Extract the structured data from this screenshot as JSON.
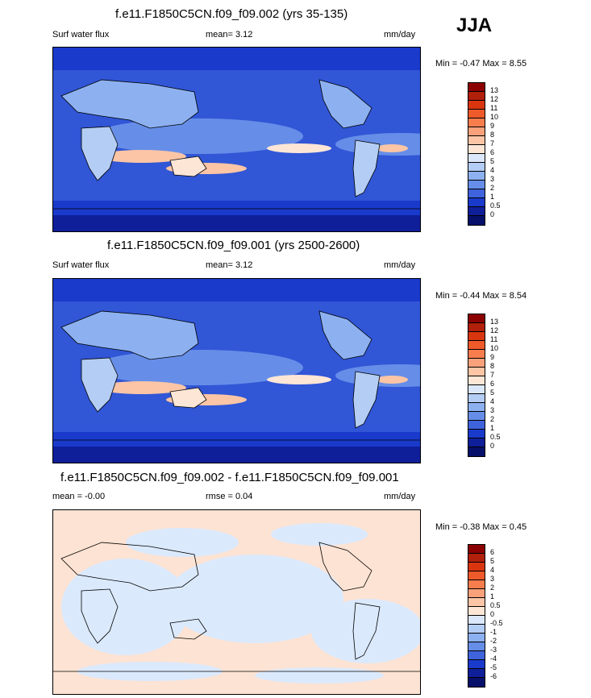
{
  "season": "JJA",
  "colors": {
    "land_outline": "#000000",
    "diff_background": "#fde3d3",
    "diff_negative": "#dbe9fc"
  },
  "panels": [
    {
      "title": "f.e11.F1850C5CN.f09_f09.002 (yrs 35-135)",
      "left_label": "Surf water flux",
      "center_label": "mean=   3.12",
      "units": "mm/day",
      "minmax": "Min = -0.47 Max =   8.55",
      "colorbar": {
        "labels": [
          "13",
          "12",
          "11",
          "10",
          "9",
          "8",
          "7",
          "6",
          "5",
          "4",
          "3",
          "2",
          "1",
          "0.5",
          "0"
        ],
        "colors": [
          "#8b0000",
          "#b0200a",
          "#d9360f",
          "#ee5a2a",
          "#f77d4d",
          "#f9a17b",
          "#fbc5a6",
          "#fde6d6",
          "#dbe8fb",
          "#b4cdf5",
          "#8db1f0",
          "#668ee8",
          "#3f63dc",
          "#1a3acb",
          "#0f1f9a",
          "#06106a"
        ]
      }
    },
    {
      "title": "f.e11.F1850C5CN.f09_f09.001 (yrs 2500-2600)",
      "left_label": "Surf water flux",
      "center_label": "mean=   3.12",
      "units": "mm/day",
      "minmax": "Min = -0.44 Max =   8.54",
      "colorbar": {
        "labels": [
          "13",
          "12",
          "11",
          "10",
          "9",
          "8",
          "7",
          "6",
          "5",
          "4",
          "3",
          "2",
          "1",
          "0.5",
          "0"
        ],
        "colors": [
          "#8b0000",
          "#b0200a",
          "#d9360f",
          "#ee5a2a",
          "#f77d4d",
          "#f9a17b",
          "#fbc5a6",
          "#fde6d6",
          "#dbe8fb",
          "#b4cdf5",
          "#8db1f0",
          "#668ee8",
          "#3f63dc",
          "#1a3acb",
          "#0f1f9a",
          "#06106a"
        ]
      }
    },
    {
      "title": "f.e11.F1850C5CN.f09_f09.002 - f.e11.F1850C5CN.f09_f09.001",
      "left_label": "mean =  -0.00",
      "center_label": "rmse =   0.04",
      "units": "mm/day",
      "minmax": "Min = -0.38 Max =   0.45",
      "colorbar": {
        "labels": [
          "6",
          "5",
          "4",
          "3",
          "2",
          "1",
          "0.5",
          "0",
          "-0.5",
          "-1",
          "-2",
          "-3",
          "-4",
          "-5",
          "-6"
        ],
        "colors": [
          "#8b0000",
          "#b0200a",
          "#d9360f",
          "#ee5a2a",
          "#f77d4d",
          "#f9a17b",
          "#fbc5a6",
          "#fde6d6",
          "#dbe8fb",
          "#b4cdf5",
          "#8db1f0",
          "#668ee8",
          "#3f63dc",
          "#1a3acb",
          "#0f1f9a",
          "#06106a"
        ]
      }
    }
  ]
}
